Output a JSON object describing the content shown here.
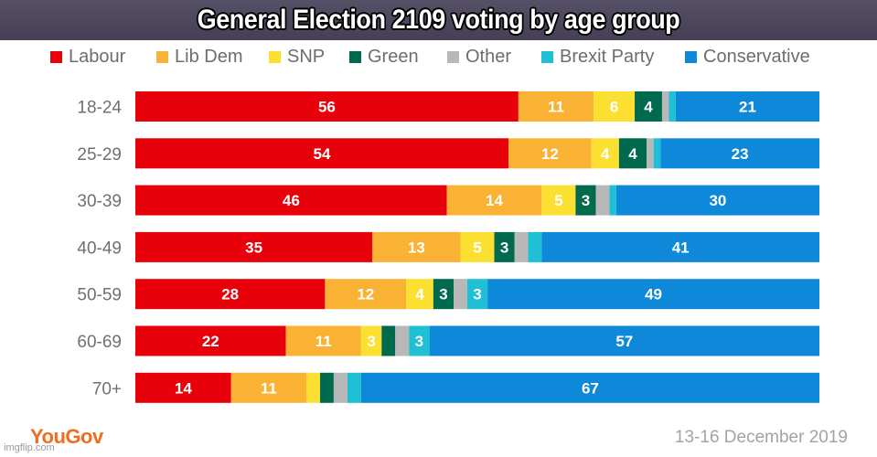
{
  "title": "General Election 2109 voting by age group",
  "footer": {
    "brand": "YouGov",
    "date": "13-16 December 2019",
    "watermark": "imgflip.com"
  },
  "chart_data": {
    "type": "bar",
    "orientation": "horizontal",
    "stacked": true,
    "normalized": true,
    "legend_position": "top",
    "grid": false,
    "categories": [
      "18-24",
      "25-29",
      "30-39",
      "40-49",
      "50-59",
      "60-69",
      "70+"
    ],
    "series": [
      {
        "name": "Labour",
        "color": "#e8000b",
        "values": [
          56,
          54,
          46,
          35,
          28,
          22,
          14
        ],
        "labels": [
          "56",
          "54",
          "46",
          "35",
          "28",
          "22",
          "14"
        ]
      },
      {
        "name": "Lib Dem",
        "color": "#f9b233",
        "values": [
          11,
          12,
          14,
          13,
          12,
          11,
          11
        ],
        "labels": [
          "11",
          "12",
          "14",
          "13",
          "12",
          "11",
          "11"
        ]
      },
      {
        "name": "SNP",
        "color": "#fbe032",
        "values": [
          6,
          4,
          5,
          5,
          4,
          3,
          2
        ],
        "labels": [
          "6",
          "4",
          "5",
          "5",
          "4",
          "3",
          ""
        ]
      },
      {
        "name": "Green",
        "color": "#006a4e",
        "values": [
          4,
          4,
          3,
          3,
          3,
          2,
          2
        ],
        "labels": [
          "4",
          "4",
          "3",
          "3",
          "3",
          "",
          ""
        ]
      },
      {
        "name": "Other",
        "color": "#b8b8b8",
        "values": [
          1,
          1,
          2,
          2,
          2,
          2,
          2
        ],
        "labels": [
          "",
          "",
          "",
          "",
          "",
          "",
          ""
        ]
      },
      {
        "name": "Brexit Party",
        "color": "#1fc0d6",
        "values": [
          1,
          1,
          1,
          2,
          3,
          3,
          2
        ],
        "labels": [
          "",
          "",
          "",
          "",
          "3",
          "3",
          ""
        ]
      },
      {
        "name": "Conservative",
        "color": "#0e88d9",
        "values": [
          21,
          23,
          30,
          41,
          49,
          57,
          67
        ],
        "labels": [
          "21",
          "23",
          "30",
          "41",
          "49",
          "57",
          "67"
        ]
      }
    ]
  }
}
